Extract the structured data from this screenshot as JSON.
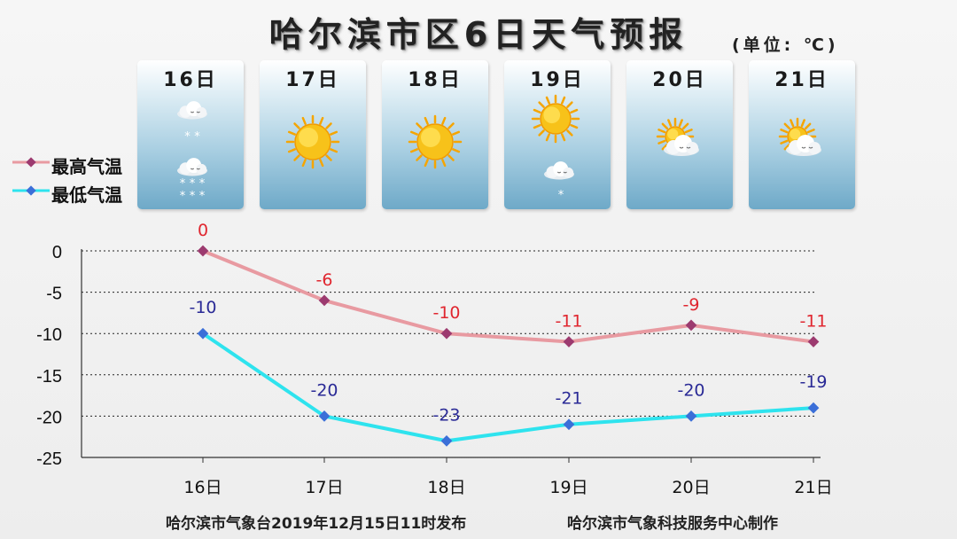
{
  "title": "哈尔滨市区6日天气预报",
  "unit": "(单位: ℃)",
  "days": [
    {
      "label": "16日",
      "icon": "light-snow-cloud-icon"
    },
    {
      "label": "17日",
      "icon": "sun-icon"
    },
    {
      "label": "18日",
      "icon": "sun-icon"
    },
    {
      "label": "19日",
      "icon": "sun-and-snow-cloud-icon"
    },
    {
      "label": "20日",
      "icon": "partly-cloudy-icon"
    },
    {
      "label": "21日",
      "icon": "partly-cloudy-icon"
    }
  ],
  "legend": {
    "high_label": "最高气温",
    "low_label": "最低气温"
  },
  "colors": {
    "high": "#e89aa1",
    "high_marker": "#9c3a6f",
    "high_text": "#e0262f",
    "low": "#2ee3ee",
    "low_marker": "#3b6fd8",
    "low_text": "#2a2a96"
  },
  "footer": {
    "left": "哈尔滨市气象台2019年12月15日11时发布",
    "right": "哈尔滨市气象科技服务中心制作"
  },
  "chart_data": {
    "type": "line",
    "categories": [
      "16日",
      "17日",
      "18日",
      "19日",
      "20日",
      "21日"
    ],
    "series": [
      {
        "name": "最高气温",
        "values": [
          0,
          -6,
          -10,
          -11,
          -9,
          -11
        ]
      },
      {
        "name": "最低气温",
        "values": [
          -10,
          -20,
          -23,
          -21,
          -20,
          -19
        ]
      }
    ],
    "ylim": [
      -25,
      0
    ],
    "yticks": [
      0,
      -5,
      -10,
      -15,
      -20,
      -25
    ],
    "grid": "dotted-horizontal",
    "legend_position": "left",
    "xlabel": "",
    "ylabel": ""
  }
}
